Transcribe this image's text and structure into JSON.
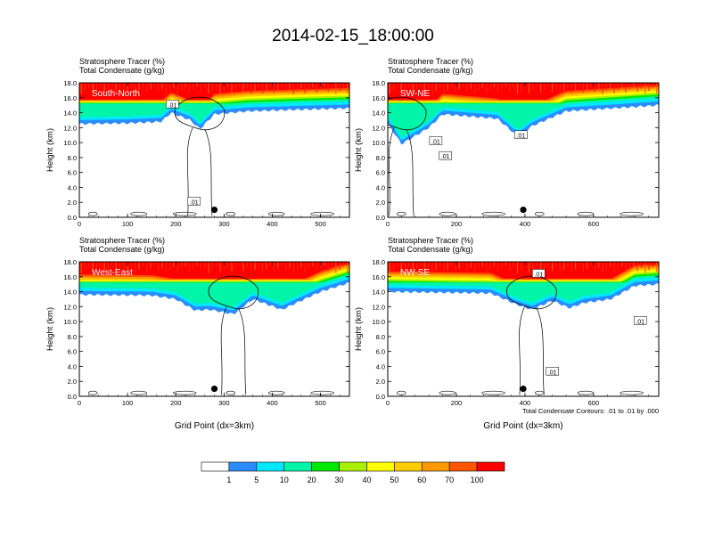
{
  "title": "2014-02-15_18:00:00",
  "colors": {
    "levels": [
      "#ffffff",
      "#2a8cff",
      "#00e8ff",
      "#00f5a8",
      "#00e800",
      "#a8f000",
      "#ffff00",
      "#ffcc00",
      "#ff9900",
      "#ff5500",
      "#ff0000"
    ],
    "contour": "#000000"
  },
  "colorbar": {
    "tick_labels": [
      "1",
      "5",
      "10",
      "20",
      "30",
      "40",
      "50",
      "60",
      "70",
      "100"
    ]
  },
  "footnote": "Total Condensate Contours: .01 to .01 by .000",
  "chart_data": [
    {
      "type": "heatmap",
      "panel_label": "South-North",
      "title_line1": "Stratosphere Tracer   (%)",
      "title_line2": "Total Condensate   (g/kg)",
      "ylabel": "Height (km)",
      "xlabel": "",
      "xlim": [
        0,
        560
      ],
      "ylim": [
        0,
        18
      ],
      "xticks": [
        "0",
        "100",
        "200",
        "300",
        "400",
        "500"
      ],
      "yticks": [
        "0.0",
        "2.0",
        "4.0",
        "6.0",
        "8.0",
        "10.0",
        "12.0",
        "14.0",
        "16.0",
        "18.0"
      ],
      "tracer_profile": {
        "x": [
          0,
          100,
          170,
          190,
          230,
          250,
          280,
          350,
          450,
          560
        ],
        "blue_base_km": [
          12.5,
          12.6,
          12.8,
          14.0,
          13.0,
          11.8,
          13.8,
          14.2,
          14.4,
          14.6
        ]
      },
      "marker": {
        "x": 280,
        "y": 1.0
      },
      "contour_labels": [
        {
          "text": ".01",
          "x": 193,
          "y": 15.1
        },
        {
          "text": ".01",
          "x": 238,
          "y": 2.1
        }
      ]
    },
    {
      "type": "heatmap",
      "panel_label": "SW-NE",
      "title_line1": "Stratosphere Tracer   (%)",
      "title_line2": "Total Condensate   (g/kg)",
      "ylabel": "Height (km)",
      "xlabel": "",
      "xlim": [
        0,
        790
      ],
      "ylim": [
        0,
        18
      ],
      "xticks": [
        "0",
        "200",
        "400",
        "600"
      ],
      "yticks": [
        "0.0",
        "2.0",
        "4.0",
        "6.0",
        "8.0",
        "10.0",
        "12.0",
        "14.0",
        "16.0",
        "18.0"
      ],
      "tracer_profile": {
        "x": [
          0,
          40,
          120,
          160,
          320,
          380,
          420,
          520,
          790
        ],
        "blue_base_km": [
          12.6,
          9.8,
          12.0,
          13.8,
          13.2,
          10.8,
          12.2,
          14.2,
          15.0
        ]
      },
      "marker": {
        "x": 395,
        "y": 1.0
      },
      "contour_labels": [
        {
          "text": ".01",
          "x": 140,
          "y": 10.2
        },
        {
          "text": ".01",
          "x": 168,
          "y": 8.2
        },
        {
          "text": ".01",
          "x": 388,
          "y": 11.0
        }
      ]
    },
    {
      "type": "heatmap",
      "panel_label": "West-East",
      "title_line1": "Stratosphere Tracer   (%)",
      "title_line2": "Total Condensate   (g/kg)",
      "ylabel": "Height (km)",
      "xlabel": "Grid Point (dx=3km)",
      "xlim": [
        0,
        560
      ],
      "ylim": [
        0,
        18
      ],
      "xticks": [
        "0",
        "100",
        "200",
        "300",
        "400",
        "500"
      ],
      "yticks": [
        "0.0",
        "2.0",
        "4.0",
        "6.0",
        "8.0",
        "10.0",
        "12.0",
        "14.0",
        "16.0",
        "18.0"
      ],
      "tracer_profile": {
        "x": [
          0,
          150,
          200,
          240,
          270,
          320,
          360,
          420,
          500,
          560
        ],
        "blue_base_km": [
          13.6,
          13.5,
          13.0,
          11.5,
          11.6,
          11.0,
          13.0,
          11.6,
          14.0,
          15.2
        ]
      },
      "marker": {
        "x": 280,
        "y": 1.0
      },
      "contour_labels": []
    },
    {
      "type": "heatmap",
      "panel_label": "NW-SE",
      "title_line1": "Stratosphere Tracer   (%)",
      "title_line2": "Total Condensate   (g/kg)",
      "ylabel": "Height (km)",
      "xlabel": "Grid Point (dx=3km)",
      "xlim": [
        0,
        790
      ],
      "ylim": [
        0,
        18
      ],
      "xticks": [
        "0",
        "200",
        "400",
        "600"
      ],
      "yticks": [
        "0.0",
        "2.0",
        "4.0",
        "6.0",
        "8.0",
        "10.0",
        "12.0",
        "14.0",
        "16.0",
        "18.0"
      ],
      "tracer_profile": {
        "x": [
          0,
          300,
          370,
          420,
          480,
          530,
          570,
          650,
          720,
          790
        ],
        "blue_base_km": [
          14.0,
          13.8,
          12.4,
          11.6,
          12.8,
          11.8,
          12.5,
          13.0,
          14.8,
          15.0
        ]
      },
      "marker": {
        "x": 395,
        "y": 1.0
      },
      "contour_labels": [
        {
          "text": ".01",
          "x": 440,
          "y": 16.4
        },
        {
          "text": ".01",
          "x": 480,
          "y": 3.3
        },
        {
          "text": ".01",
          "x": 736,
          "y": 10.1
        }
      ]
    }
  ]
}
